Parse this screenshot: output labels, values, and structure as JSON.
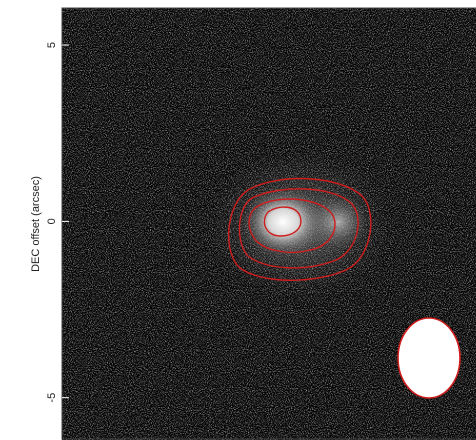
{
  "chart_data": {
    "type": "image",
    "y_label": "DEC offset (arcsec)",
    "ylim": [
      -6.2,
      6.05
    ],
    "yticks": [
      -5,
      0,
      5
    ]
  }
}
